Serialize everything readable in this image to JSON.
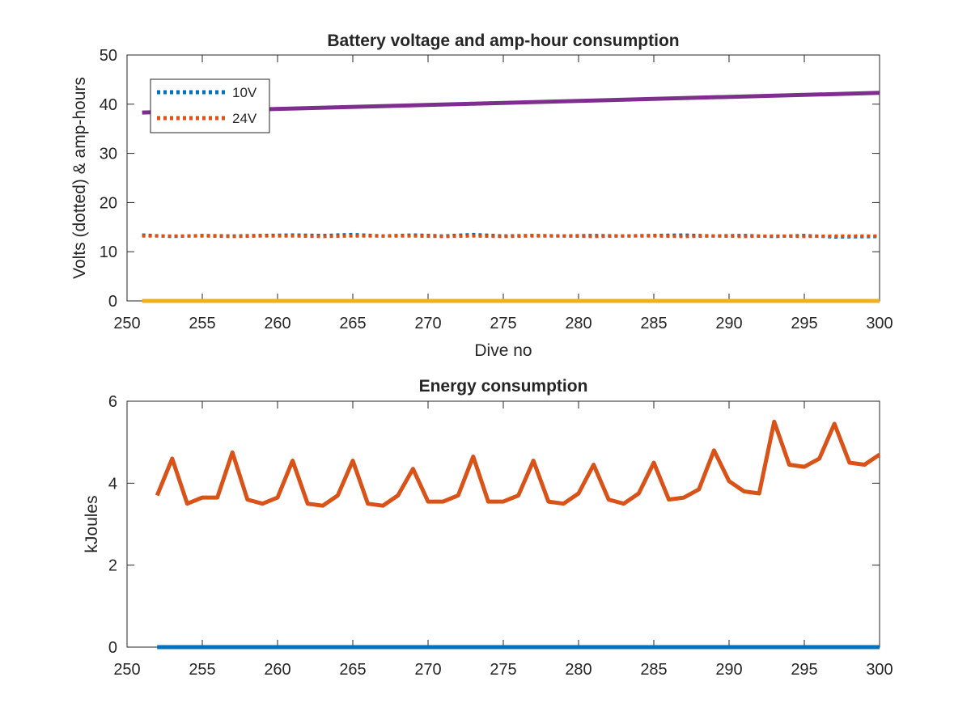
{
  "chart_data": [
    {
      "type": "line",
      "title": "Battery voltage and amp-hour consumption",
      "xlabel": "Dive no",
      "ylabel": "Volts (dotted) & amp-hours",
      "xlim": [
        250,
        300
      ],
      "ylim": [
        0,
        50
      ],
      "xticks": [
        250,
        255,
        260,
        265,
        270,
        275,
        280,
        285,
        290,
        295,
        300
      ],
      "yticks": [
        0,
        10,
        20,
        30,
        40,
        50
      ],
      "grid": false,
      "legend_position": "top-left",
      "series": [
        {
          "name": "10V",
          "style": "dotted",
          "color": "#0072BD",
          "x": [
            251,
            253,
            255,
            257,
            259,
            261,
            263,
            265,
            267,
            269,
            271,
            273,
            275,
            277,
            279,
            281,
            283,
            285,
            287,
            289,
            291,
            293,
            295,
            297,
            300
          ],
          "y": [
            13.4,
            13.1,
            13.3,
            13.2,
            13.3,
            13.4,
            13.3,
            13.5,
            13.2,
            13.4,
            13.2,
            13.5,
            13.2,
            13.3,
            13.2,
            13.3,
            13.2,
            13.3,
            13.4,
            13.2,
            13.3,
            13.1,
            13.3,
            13.0,
            13.1
          ]
        },
        {
          "name": "24V",
          "style": "dotted",
          "color": "#D95319",
          "x": [
            251,
            253,
            255,
            257,
            259,
            261,
            263,
            265,
            267,
            269,
            271,
            273,
            275,
            277,
            279,
            281,
            283,
            285,
            287,
            289,
            291,
            293,
            295,
            297,
            300
          ],
          "y": [
            13.2,
            13.2,
            13.2,
            13.1,
            13.2,
            13.2,
            13.1,
            13.2,
            13.2,
            13.2,
            13.1,
            13.2,
            13.1,
            13.2,
            13.2,
            13.1,
            13.2,
            13.2,
            13.1,
            13.2,
            13.1,
            13.2,
            13.1,
            13.2,
            13.2
          ]
        },
        {
          "style": "solid",
          "color": "#7E2F8E",
          "x": [
            251,
            300
          ],
          "y": [
            38.3,
            42.3
          ]
        },
        {
          "style": "solid",
          "color": "#EDB120",
          "x": [
            251,
            300
          ],
          "y": [
            0,
            0
          ]
        }
      ]
    },
    {
      "type": "line",
      "title": "Energy consumption",
      "xlabel": "",
      "ylabel": "kJoules",
      "xlim": [
        250,
        300
      ],
      "ylim": [
        0,
        6
      ],
      "xticks": [
        250,
        255,
        260,
        265,
        270,
        275,
        280,
        285,
        290,
        295,
        300
      ],
      "yticks": [
        0,
        2,
        4,
        6
      ],
      "grid": false,
      "series": [
        {
          "style": "solid",
          "color": "#0072BD",
          "x": [
            252,
            300
          ],
          "y": [
            0,
            0
          ]
        },
        {
          "style": "solid",
          "color": "#D95319",
          "x": [
            252,
            253,
            254,
            255,
            256,
            257,
            258,
            259,
            260,
            261,
            262,
            263,
            264,
            265,
            266,
            267,
            268,
            269,
            270,
            271,
            272,
            273,
            274,
            275,
            276,
            277,
            278,
            279,
            280,
            281,
            282,
            283,
            284,
            285,
            286,
            287,
            288,
            289,
            290,
            291,
            292,
            293,
            294,
            295,
            296,
            297,
            298,
            299,
            300
          ],
          "y": [
            3.7,
            4.6,
            3.5,
            3.65,
            3.65,
            4.75,
            3.6,
            3.5,
            3.65,
            4.55,
            3.5,
            3.45,
            3.7,
            4.55,
            3.5,
            3.45,
            3.7,
            4.35,
            3.55,
            3.55,
            3.7,
            4.65,
            3.55,
            3.55,
            3.7,
            4.55,
            3.55,
            3.5,
            3.75,
            4.45,
            3.6,
            3.5,
            3.75,
            4.5,
            3.6,
            3.65,
            3.85,
            4.8,
            4.05,
            3.8,
            3.75,
            5.5,
            4.45,
            4.4,
            4.6,
            5.45,
            4.5,
            4.45,
            4.7
          ]
        }
      ]
    }
  ]
}
